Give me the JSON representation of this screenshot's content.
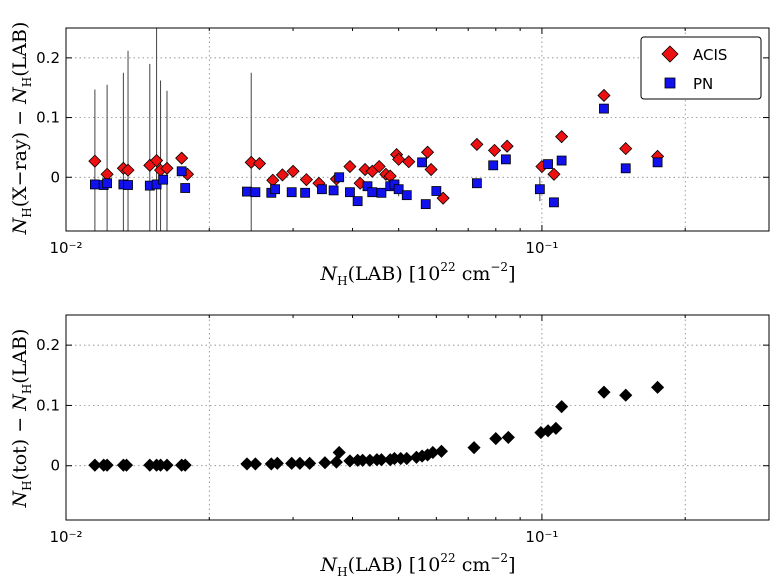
{
  "chart_data": [
    {
      "type": "scatter",
      "xscale": "log",
      "xlim": [
        0.01,
        0.3
      ],
      "ylim": [
        -0.09,
        0.25
      ],
      "xticks": [
        {
          "value": 0.01,
          "label": "10⁻²"
        },
        {
          "value": 0.1,
          "label": "10⁻¹"
        }
      ],
      "yticks": [
        {
          "value": 0.0,
          "label": "0"
        },
        {
          "value": 0.1,
          "label": "0.1"
        },
        {
          "value": 0.2,
          "label": "0.2"
        }
      ],
      "xlabel": "N_H(LAB) [10^22 cm^-2]",
      "ylabel": "N_H(X-ray) − N_H(LAB)",
      "grid": true,
      "legend": {
        "position": "top-right"
      },
      "colors": {
        "acis": "#ee1111",
        "pn": "#1111ee"
      },
      "series": [
        {
          "name": "ACIS",
          "marker": "diamond",
          "x": [
            0.0115,
            0.0122,
            0.0132,
            0.0135,
            0.015,
            0.0155,
            0.0158,
            0.0163,
            0.0175,
            0.018,
            0.0245,
            0.0255,
            0.0272,
            0.0285,
            0.03,
            0.032,
            0.034,
            0.037,
            0.0395,
            0.0415,
            0.0425,
            0.044,
            0.0455,
            0.047,
            0.048,
            0.0495,
            0.05,
            0.0525,
            0.0575,
            0.0585,
            0.062,
            0.073,
            0.0795,
            0.0845,
            0.1,
            0.106,
            0.11,
            0.135,
            0.15,
            0.175
          ],
          "y": [
            0.027,
            0.005,
            0.015,
            0.012,
            0.02,
            0.028,
            0.012,
            0.015,
            0.032,
            0.005,
            0.025,
            0.023,
            -0.005,
            0.004,
            0.01,
            -0.004,
            -0.01,
            -0.003,
            0.018,
            -0.01,
            0.013,
            0.01,
            0.018,
            0.005,
            0.002,
            0.038,
            0.03,
            0.026,
            0.042,
            0.013,
            -0.035,
            0.055,
            0.045,
            0.052,
            0.018,
            0.005,
            0.068,
            0.137,
            0.048,
            0.035
          ],
          "yerr": [
            0.12,
            0.15,
            0.16,
            0.2,
            0.17,
            0.24,
            0.15,
            0.13,
            0,
            0,
            0.15,
            0.0,
            0,
            0,
            0,
            0,
            0,
            0,
            0,
            0,
            0,
            0,
            0,
            0,
            0,
            0,
            0,
            0,
            0,
            0,
            0,
            0,
            0,
            0,
            0,
            0.005,
            0,
            0,
            0,
            0
          ]
        },
        {
          "name": "PN",
          "marker": "square",
          "x": [
            0.0115,
            0.012,
            0.0122,
            0.0132,
            0.0135,
            0.015,
            0.0155,
            0.016,
            0.0175,
            0.0178,
            0.024,
            0.025,
            0.027,
            0.0275,
            0.0298,
            0.0318,
            0.0345,
            0.0365,
            0.0375,
            0.0395,
            0.041,
            0.043,
            0.044,
            0.046,
            0.048,
            0.049,
            0.05,
            0.052,
            0.056,
            0.057,
            0.06,
            0.073,
            0.079,
            0.084,
            0.099,
            0.103,
            0.106,
            0.11,
            0.135,
            0.15,
            0.175
          ],
          "y": [
            -0.012,
            -0.013,
            -0.01,
            -0.012,
            -0.013,
            -0.014,
            -0.012,
            -0.004,
            0.01,
            -0.018,
            -0.024,
            -0.025,
            -0.026,
            -0.02,
            -0.025,
            -0.026,
            -0.02,
            -0.022,
            0.0,
            -0.025,
            -0.04,
            -0.015,
            -0.025,
            -0.026,
            -0.015,
            -0.012,
            -0.02,
            -0.03,
            0.025,
            -0.045,
            -0.023,
            -0.01,
            0.02,
            0.03,
            -0.02,
            0.022,
            -0.042,
            0.028,
            0.115,
            0.015,
            0.025
          ],
          "yerr": [
            0,
            0,
            0,
            0,
            0,
            0,
            0,
            0,
            0,
            0,
            0,
            0,
            0,
            0,
            0,
            0,
            0,
            0,
            0,
            0,
            0,
            0,
            0,
            0,
            0,
            0,
            0.012,
            0,
            0,
            0,
            0,
            0,
            0,
            0,
            0.02,
            0,
            0,
            0,
            0,
            0,
            0
          ]
        }
      ]
    },
    {
      "type": "scatter",
      "xscale": "log",
      "xlim": [
        0.01,
        0.3
      ],
      "ylim": [
        -0.09,
        0.25
      ],
      "xticks": [
        {
          "value": 0.01,
          "label": "10⁻²"
        },
        {
          "value": 0.1,
          "label": "10⁻¹"
        }
      ],
      "yticks": [
        {
          "value": 0.0,
          "label": "0"
        },
        {
          "value": 0.1,
          "label": "0.1"
        },
        {
          "value": 0.2,
          "label": "0.2"
        }
      ],
      "xlabel": "N_H(LAB) [10^22 cm^-2]",
      "ylabel": "N_H(tot) − N_H(LAB)",
      "grid": true,
      "colors": {
        "points": "#000000"
      },
      "series": [
        {
          "name": "N_H(tot)",
          "marker": "diamond",
          "x": [
            0.0115,
            0.012,
            0.0122,
            0.0132,
            0.0134,
            0.015,
            0.0155,
            0.0158,
            0.0163,
            0.0175,
            0.0178,
            0.024,
            0.025,
            0.027,
            0.0278,
            0.0298,
            0.031,
            0.0325,
            0.035,
            0.037,
            0.0375,
            0.0395,
            0.041,
            0.042,
            0.0435,
            0.045,
            0.046,
            0.048,
            0.049,
            0.0505,
            0.052,
            0.0545,
            0.056,
            0.0575,
            0.059,
            0.0615,
            0.072,
            0.08,
            0.085,
            0.0995,
            0.103,
            0.107,
            0.11,
            0.135,
            0.15,
            0.175
          ],
          "y": [
            0.001,
            0.001,
            0.001,
            0.001,
            0.001,
            0.001,
            0.001,
            0.001,
            0.001,
            0.001,
            0.001,
            0.003,
            0.003,
            0.003,
            0.004,
            0.004,
            0.004,
            0.004,
            0.005,
            0.006,
            0.022,
            0.008,
            0.009,
            0.009,
            0.009,
            0.01,
            0.01,
            0.01,
            0.012,
            0.012,
            0.012,
            0.014,
            0.016,
            0.018,
            0.022,
            0.024,
            0.03,
            0.045,
            0.047,
            0.055,
            0.058,
            0.062,
            0.098,
            0.122,
            0.117,
            0.13
          ]
        }
      ]
    }
  ]
}
